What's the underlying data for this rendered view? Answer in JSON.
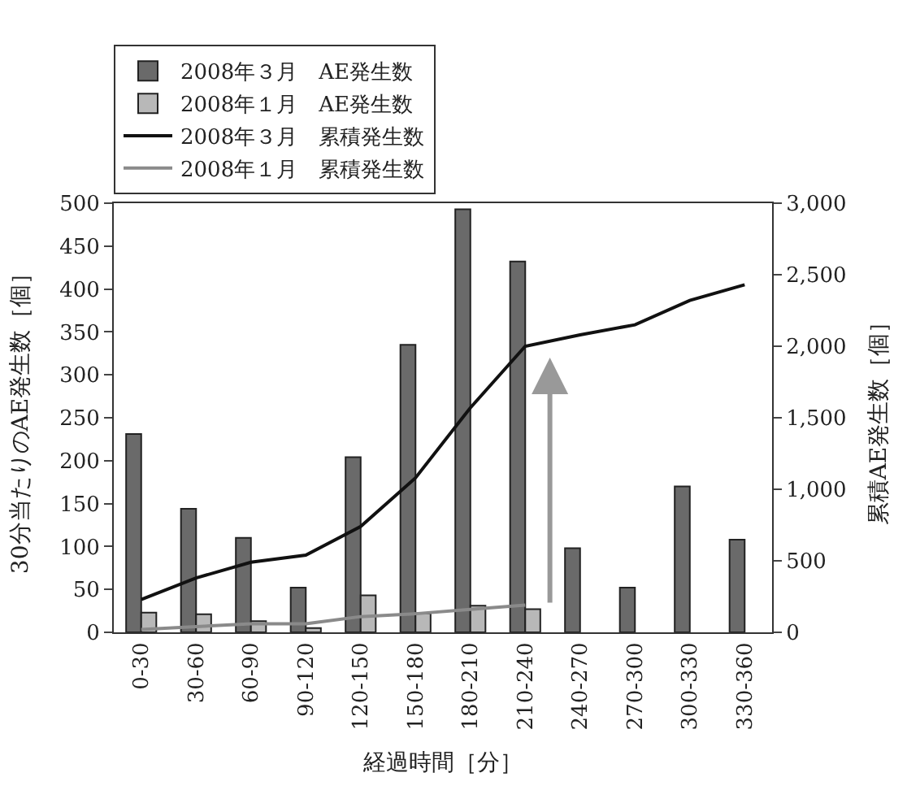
{
  "chart_data": {
    "type": "bar",
    "xlabel": "経過時間［分］",
    "ylabel": "30分当たりのAE発生数［個］",
    "y2label": "累積AE発生数［個］",
    "categories": [
      "0-30",
      "30-60",
      "60-90",
      "90-120",
      "120-150",
      "150-180",
      "180-210",
      "210-240",
      "240-270",
      "270-300",
      "300-330",
      "330-360"
    ],
    "series": [
      {
        "name": "2008年３月　AE発生数",
        "color": "#6a6a6a",
        "values": [
          231,
          144,
          110,
          52,
          204,
          335,
          493,
          432,
          98,
          52,
          170,
          108
        ]
      },
      {
        "name": "2008年１月　AE発生数",
        "color": "#b8b8b8",
        "values": [
          23,
          21,
          13,
          5,
          43,
          22,
          31,
          27,
          null,
          null,
          null,
          null
        ]
      },
      {
        "name": "2008年３月　累積発生数",
        "type": "line",
        "axis": "y2",
        "color": "#111111",
        "values": [
          230,
          380,
          490,
          540,
          740,
          1080,
          1570,
          2000,
          2080,
          2150,
          2320,
          2430
        ]
      },
      {
        "name": "2008年１月　累積発生数",
        "type": "line",
        "axis": "y2",
        "color": "#8a8a8a",
        "values": [
          20,
          40,
          60,
          60,
          110,
          130,
          160,
          190,
          null,
          null,
          null,
          null
        ]
      }
    ],
    "ylim": [
      0,
      500
    ],
    "yticks": [
      0,
      50,
      100,
      150,
      200,
      250,
      300,
      350,
      400,
      450,
      500
    ],
    "y2lim": [
      0,
      3000
    ],
    "y2ticks": [
      0,
      {
        "value": 500,
        "label": "500"
      },
      {
        "value": 1000,
        "label": "1,000"
      },
      {
        "value": 1500,
        "label": "1,500"
      },
      {
        "value": 2000,
        "label": "2,000"
      },
      {
        "value": 2500,
        "label": "2,500"
      },
      {
        "value": 3000,
        "label": "3,000"
      }
    ],
    "legend": "top left",
    "marker": "none",
    "line_style": "solid"
  }
}
